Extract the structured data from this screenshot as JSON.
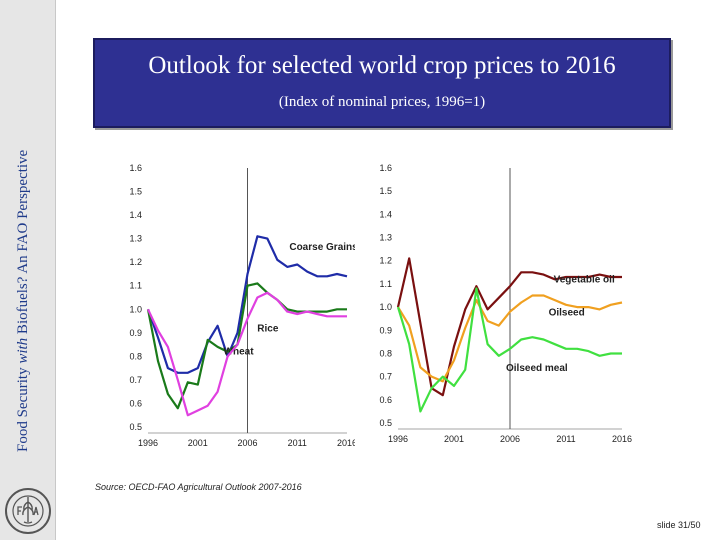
{
  "sidebar": {
    "text_prefix": "Food Security ",
    "text_italic": "with",
    "text_suffix": " Biofuels? An FAO Perspective"
  },
  "title": "Outlook for selected world crop prices to 2016",
  "subtitle": "(Index of nominal prices, 1996=1)",
  "source": "Source: OECD-FAO Agricultural Outlook 2007-2016",
  "slide_number": "slide 31/50",
  "colors": {
    "title_bg": "#2e3092",
    "coarse_grains": "#1f2ca8",
    "wheat": "#1a7a1a",
    "rice": "#e040e0",
    "vegetable_oil": "#7a1010",
    "oilseed": "#f0a020",
    "oilseed_meal": "#40e040"
  },
  "chart_data": [
    {
      "type": "line",
      "x": [
        1996,
        1997,
        1998,
        1999,
        2000,
        2001,
        2002,
        2003,
        2004,
        2005,
        2006,
        2007,
        2008,
        2009,
        2010,
        2011,
        2012,
        2013,
        2014,
        2015,
        2016
      ],
      "xticks": [
        "1996",
        "2001",
        "2006",
        "2011",
        "2016"
      ],
      "yticks": [
        "1.6",
        "1.5",
        "1.4",
        "1.3",
        "1.2",
        "1.1",
        "1.0",
        "0.9",
        "0.8",
        "0.7",
        "0.6",
        "0.5"
      ],
      "ylim": [
        0.5,
        1.6
      ],
      "vline": 2006,
      "series": [
        {
          "name": "Coarse Grains",
          "color_key": "coarse_grains",
          "values": [
            1.0,
            0.88,
            0.75,
            0.73,
            0.73,
            0.75,
            0.86,
            0.93,
            0.8,
            0.9,
            1.15,
            1.31,
            1.3,
            1.21,
            1.18,
            1.19,
            1.16,
            1.14,
            1.14,
            1.15,
            1.14
          ]
        },
        {
          "name": "Wheat",
          "color_key": "wheat",
          "values": [
            1.0,
            0.78,
            0.64,
            0.58,
            0.69,
            0.68,
            0.87,
            0.84,
            0.82,
            0.85,
            1.1,
            1.11,
            1.07,
            1.04,
            1.0,
            0.99,
            0.99,
            0.99,
            0.99,
            1.0,
            1.0
          ]
        },
        {
          "name": "Rice",
          "color_key": "rice",
          "values": [
            1.0,
            0.91,
            0.84,
            0.7,
            0.55,
            0.57,
            0.59,
            0.65,
            0.8,
            0.85,
            0.96,
            1.05,
            1.07,
            1.04,
            0.99,
            0.98,
            0.99,
            0.98,
            0.97,
            0.97,
            0.97
          ]
        }
      ]
    },
    {
      "type": "line",
      "x": [
        1996,
        1997,
        1998,
        1999,
        2000,
        2001,
        2002,
        2003,
        2004,
        2005,
        2006,
        2007,
        2008,
        2009,
        2010,
        2011,
        2012,
        2013,
        2014,
        2015,
        2016
      ],
      "xticks": [
        "1996",
        "2001",
        "2006",
        "2011",
        "2016"
      ],
      "yticks": [
        "1.6",
        "1.5",
        "1.4",
        "1.3",
        "1.2",
        "1.1",
        "1.0",
        "0.9",
        "0.8",
        "0.7",
        "0.6",
        "0.5"
      ],
      "ylim": [
        0.5,
        1.6
      ],
      "vline": 2006,
      "series": [
        {
          "name": "Vegetable oil",
          "color_key": "vegetable_oil",
          "values": [
            1.0,
            1.21,
            0.93,
            0.65,
            0.62,
            0.83,
            0.99,
            1.09,
            0.99,
            1.04,
            1.09,
            1.15,
            1.15,
            1.14,
            1.12,
            1.13,
            1.13,
            1.13,
            1.14,
            1.13,
            1.13
          ]
        },
        {
          "name": "Oilseed",
          "color_key": "oilseed",
          "values": [
            1.0,
            0.92,
            0.74,
            0.7,
            0.68,
            0.77,
            0.91,
            1.03,
            0.94,
            0.92,
            0.98,
            1.02,
            1.05,
            1.05,
            1.03,
            1.01,
            1.0,
            1.0,
            0.99,
            1.01,
            1.02
          ]
        },
        {
          "name": "Oilseed meal",
          "color_key": "oilseed_meal",
          "values": [
            1.0,
            0.84,
            0.55,
            0.65,
            0.7,
            0.66,
            0.73,
            1.08,
            0.84,
            0.79,
            0.82,
            0.86,
            0.87,
            0.86,
            0.84,
            0.82,
            0.82,
            0.81,
            0.79,
            0.8,
            0.8
          ]
        }
      ]
    }
  ]
}
